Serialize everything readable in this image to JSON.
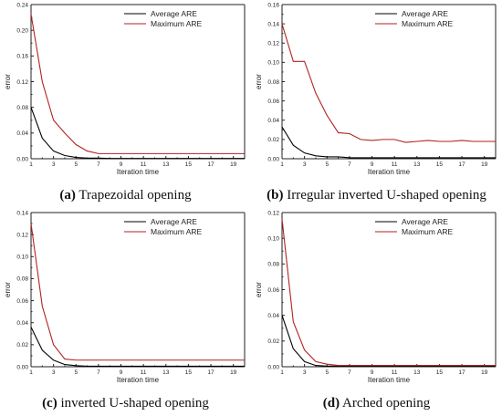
{
  "chart_data": [
    {
      "id": "a",
      "type": "line",
      "caption_letter": "(a)",
      "caption_text": "Trapezoidal opening",
      "xlabel": "Iteration time",
      "ylabel": "error",
      "xlim": [
        1,
        20
      ],
      "ylim": [
        0,
        0.24
      ],
      "xticks": [
        1,
        3,
        5,
        7,
        9,
        11,
        13,
        15,
        17,
        19
      ],
      "yticks": [
        0.0,
        0.04,
        0.08,
        0.12,
        0.16,
        0.2,
        0.24
      ],
      "ytick_labels": [
        "0.00",
        "0.04",
        "0.08",
        "0.12",
        "0.16",
        "0.20",
        "0.24"
      ],
      "legend_position": "top-right",
      "x": [
        1,
        2,
        3,
        4,
        5,
        6,
        7,
        8,
        9,
        10,
        11,
        12,
        13,
        14,
        15,
        16,
        17,
        18,
        19,
        20
      ],
      "series": [
        {
          "name": "Average ARE",
          "color": "#000000",
          "values": [
            0.08,
            0.032,
            0.012,
            0.005,
            0.002,
            0.001,
            0.001,
            0.0005,
            0.0005,
            0.0005,
            0.0005,
            0.0005,
            0.0005,
            0.0005,
            0.0005,
            0.0005,
            0.0005,
            0.0005,
            0.0005,
            0.0005
          ]
        },
        {
          "name": "Maximum ARE",
          "color": "#b22222",
          "values": [
            0.225,
            0.12,
            0.06,
            0.04,
            0.022,
            0.012,
            0.008,
            0.008,
            0.008,
            0.008,
            0.008,
            0.008,
            0.008,
            0.008,
            0.008,
            0.008,
            0.008,
            0.008,
            0.008,
            0.008
          ]
        }
      ]
    },
    {
      "id": "b",
      "type": "line",
      "caption_letter": "(b)",
      "caption_text": "Irregular inverted U-shaped opening",
      "xlabel": "Iteration time",
      "ylabel": "error",
      "xlim": [
        1,
        20
      ],
      "ylim": [
        0,
        0.16
      ],
      "xticks": [
        1,
        3,
        5,
        7,
        9,
        11,
        13,
        15,
        17,
        19
      ],
      "yticks": [
        0.0,
        0.02,
        0.04,
        0.06,
        0.08,
        0.1,
        0.12,
        0.14,
        0.16
      ],
      "ytick_labels": [
        "0.00",
        "0.02",
        "0.04",
        "0.06",
        "0.08",
        "0.10",
        "0.12",
        "0.14",
        "0.16"
      ],
      "legend_position": "top-right",
      "x": [
        1,
        2,
        3,
        4,
        5,
        6,
        7,
        8,
        9,
        10,
        11,
        12,
        13,
        14,
        15,
        16,
        17,
        18,
        19,
        20
      ],
      "series": [
        {
          "name": "Average ARE",
          "color": "#000000",
          "values": [
            0.033,
            0.014,
            0.006,
            0.003,
            0.002,
            0.002,
            0.001,
            0.001,
            0.001,
            0.001,
            0.001,
            0.001,
            0.001,
            0.001,
            0.001,
            0.001,
            0.001,
            0.001,
            0.001,
            0.001
          ]
        },
        {
          "name": "Maximum ARE",
          "color": "#b22222",
          "values": [
            0.14,
            0.101,
            0.101,
            0.068,
            0.045,
            0.027,
            0.026,
            0.02,
            0.019,
            0.02,
            0.02,
            0.017,
            0.018,
            0.019,
            0.018,
            0.018,
            0.019,
            0.018,
            0.018,
            0.018
          ]
        }
      ]
    },
    {
      "id": "c",
      "type": "line",
      "caption_letter": "(c)",
      "caption_text": "inverted U-shaped opening",
      "xlabel": "Iteration time",
      "ylabel": "error",
      "xlim": [
        1,
        20
      ],
      "ylim": [
        0,
        0.14
      ],
      "xticks": [
        1,
        3,
        5,
        7,
        9,
        11,
        13,
        15,
        17,
        19
      ],
      "yticks": [
        0.0,
        0.02,
        0.04,
        0.06,
        0.08,
        0.1,
        0.12,
        0.14
      ],
      "ytick_labels": [
        "0.00",
        "0.02",
        "0.04",
        "0.06",
        "0.08",
        "0.10",
        "0.12",
        "0.14"
      ],
      "legend_position": "top-right",
      "x": [
        1,
        2,
        3,
        4,
        5,
        6,
        7,
        8,
        9,
        10,
        11,
        12,
        13,
        14,
        15,
        16,
        17,
        18,
        19,
        20
      ],
      "series": [
        {
          "name": "Average ARE",
          "color": "#000000",
          "values": [
            0.036,
            0.015,
            0.006,
            0.002,
            0.001,
            0.0005,
            0.0005,
            0.0005,
            0.0005,
            0.0005,
            0.0005,
            0.0005,
            0.0005,
            0.0005,
            0.0005,
            0.0005,
            0.0005,
            0.0005,
            0.0005,
            0.0005
          ]
        },
        {
          "name": "Maximum ARE",
          "color": "#b22222",
          "values": [
            0.13,
            0.055,
            0.02,
            0.007,
            0.006,
            0.006,
            0.006,
            0.006,
            0.006,
            0.006,
            0.006,
            0.006,
            0.006,
            0.006,
            0.006,
            0.006,
            0.006,
            0.006,
            0.006,
            0.006
          ]
        }
      ]
    },
    {
      "id": "d",
      "type": "line",
      "caption_letter": "(d)",
      "caption_text": "Arched opening",
      "xlabel": "Iteration time",
      "ylabel": "error",
      "xlim": [
        1,
        20
      ],
      "ylim": [
        0,
        0.12
      ],
      "xticks": [
        1,
        3,
        5,
        7,
        9,
        11,
        13,
        15,
        17,
        19
      ],
      "yticks": [
        0.0,
        0.02,
        0.04,
        0.06,
        0.08,
        0.1,
        0.12
      ],
      "ytick_labels": [
        "0.00",
        "0.02",
        "0.04",
        "0.06",
        "0.08",
        "0.10",
        "0.12"
      ],
      "legend_position": "top-right",
      "x": [
        1,
        2,
        3,
        4,
        5,
        6,
        7,
        8,
        9,
        10,
        11,
        12,
        13,
        14,
        15,
        16,
        17,
        18,
        19,
        20
      ],
      "series": [
        {
          "name": "Average ARE",
          "color": "#000000",
          "values": [
            0.04,
            0.014,
            0.004,
            0.001,
            0.0005,
            0.0005,
            0.0005,
            0.0005,
            0.0005,
            0.0005,
            0.0005,
            0.0005,
            0.0005,
            0.0005,
            0.0005,
            0.0005,
            0.0005,
            0.0005,
            0.0005,
            0.0005
          ]
        },
        {
          "name": "Maximum ARE",
          "color": "#b22222",
          "values": [
            0.115,
            0.035,
            0.013,
            0.004,
            0.002,
            0.001,
            0.001,
            0.001,
            0.001,
            0.001,
            0.001,
            0.001,
            0.001,
            0.001,
            0.001,
            0.001,
            0.001,
            0.001,
            0.001,
            0.001
          ]
        }
      ]
    }
  ]
}
